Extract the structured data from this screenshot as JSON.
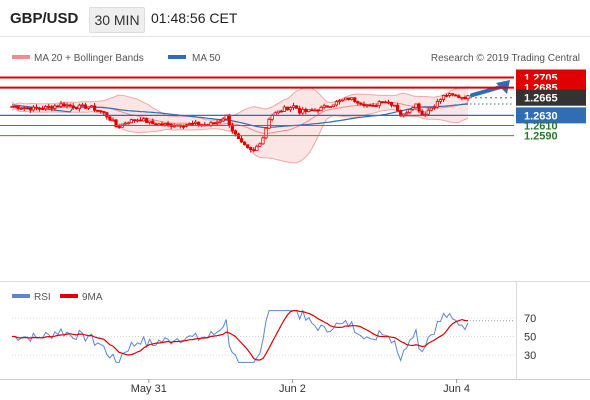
{
  "header": {
    "pair": "GBP/USD",
    "timeframe": "30 MIN",
    "time": "01:48:56 CET"
  },
  "legend": {
    "bollinger": "MA 20 + Bollinger Bands",
    "ma50": "MA 50",
    "copyright": "Research © 2019 Trading Central"
  },
  "rsi_legend": {
    "rsi": "RSI",
    "ma": "9MA"
  },
  "colors": {
    "candle": "#e00000",
    "ma50": "#2f6db5",
    "bands": "#f7c6c6",
    "resistance": "#e00000",
    "support": "#2f9a2f",
    "pivot": "#2f6db5",
    "current": "#333333",
    "arrow": "#2f6db5",
    "rsi": "#5b86d8",
    "rsi_ma": "#e00000"
  },
  "chart_data": [
    {
      "type": "candlestick",
      "series": [
        {
          "name": "MA 20 + Bollinger Bands"
        },
        {
          "name": "MA 50"
        }
      ],
      "ylim": [
        1.2535,
        1.272
      ],
      "levels": {
        "resistance": [
          "1.2705",
          "1.2685"
        ],
        "current": "1.2665",
        "pivot": "1.2630",
        "support": [
          "1.2610",
          "1.2590"
        ]
      },
      "forecast_arrow_target": 1.2705,
      "x_ticks": [
        "May 31",
        "Jun 2",
        "Jun 4"
      ]
    },
    {
      "type": "line",
      "series": [
        {
          "name": "RSI"
        },
        {
          "name": "9MA"
        }
      ],
      "ylim": [
        20,
        80
      ],
      "y_ticks": [
        "70",
        "50",
        "30"
      ],
      "x_ticks": [
        "May 31",
        "Jun 2",
        "Jun 4"
      ]
    }
  ]
}
